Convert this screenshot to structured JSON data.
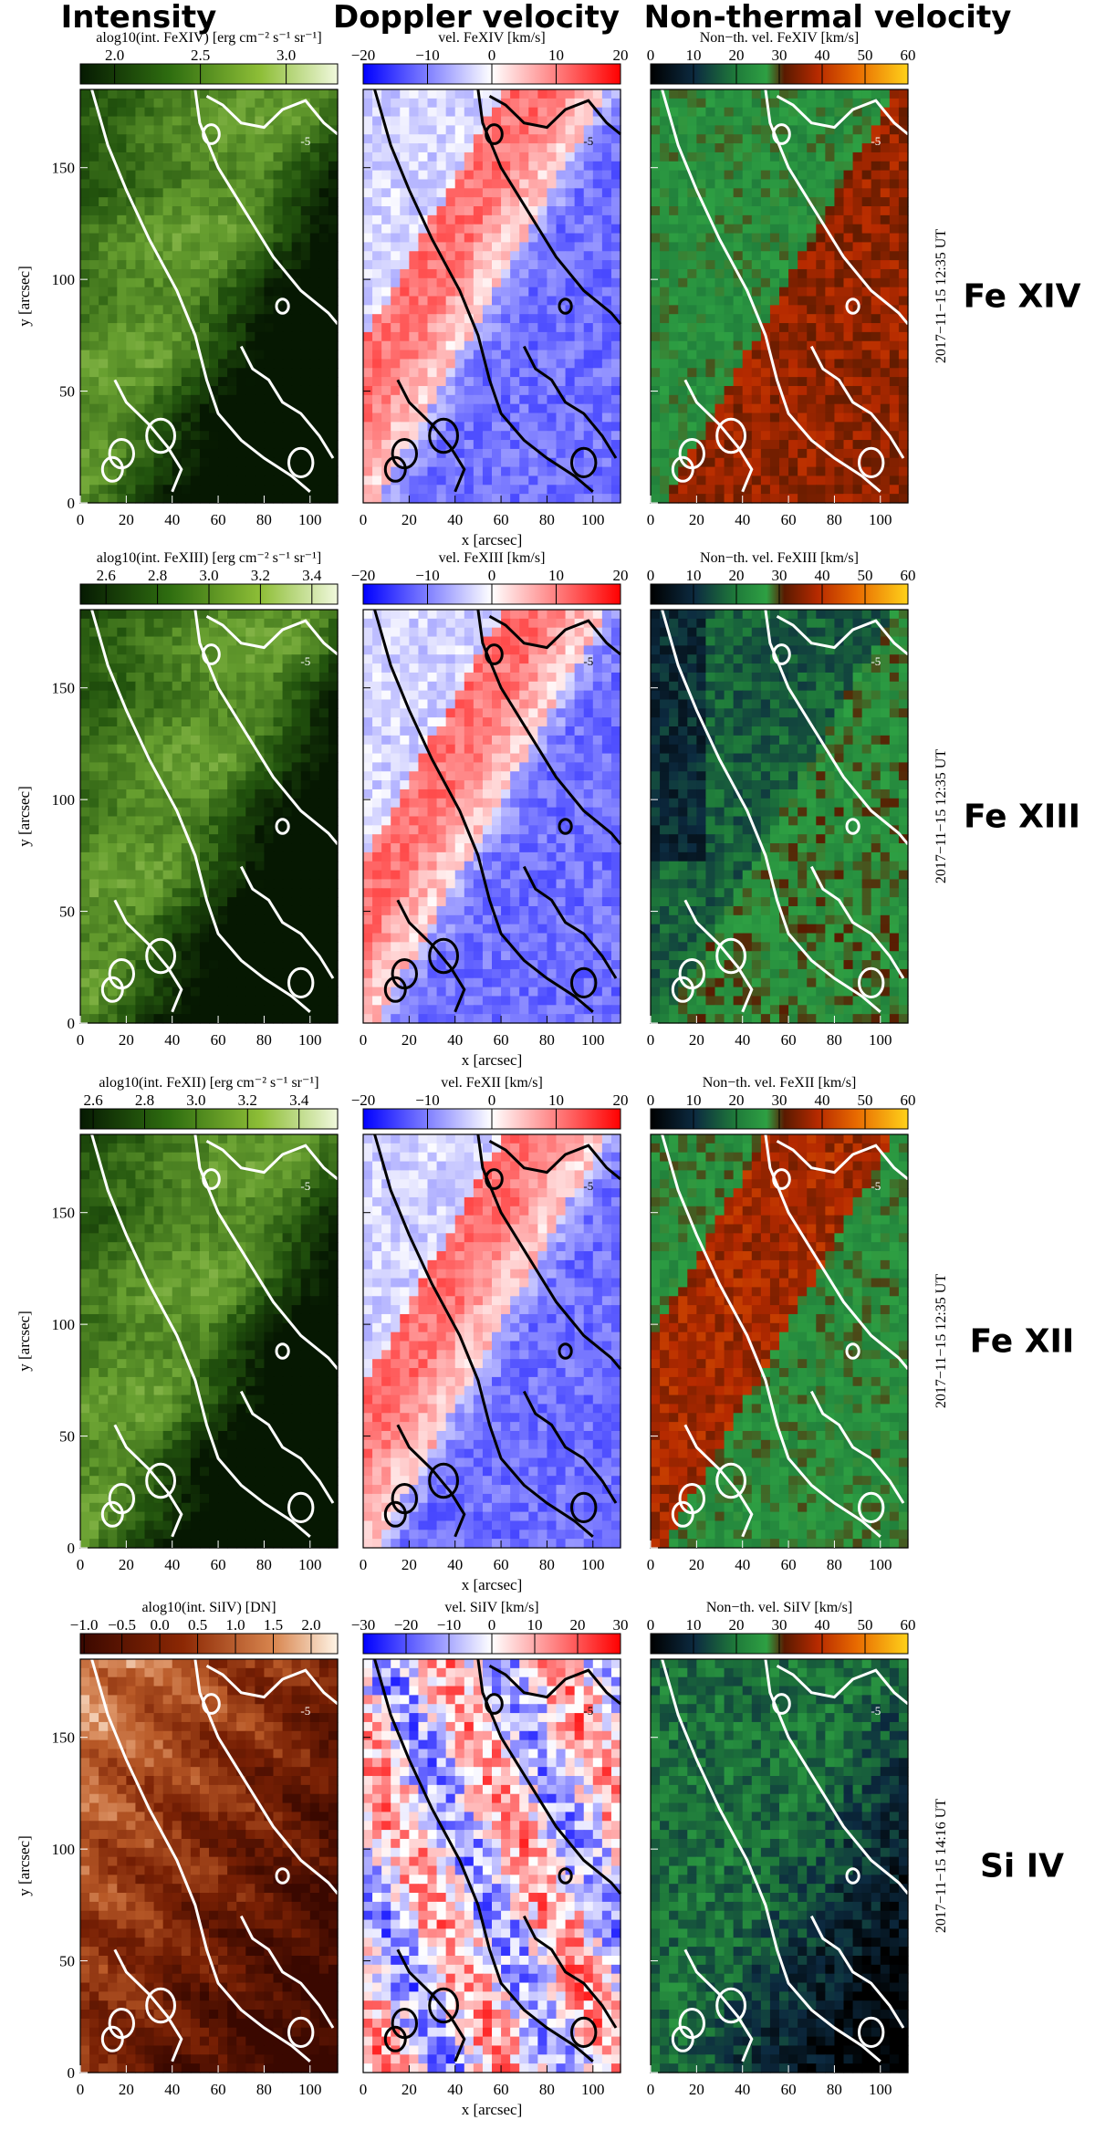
{
  "headings": [
    "Intensity",
    "Doppler velocity",
    "Non-thermal velocity"
  ],
  "chart_data": {
    "type": "heatmap",
    "title": "Intensity, Doppler velocity and non-thermal velocity maps",
    "xlabel": "x [arcsec]",
    "ylabel": "y [arcsec]",
    "xlim": [
      0,
      112
    ],
    "ylim": [
      0,
      185
    ],
    "x_ticks": [
      0,
      20,
      40,
      60,
      80,
      100
    ],
    "y_ticks": [
      0,
      50,
      100,
      150
    ],
    "contour_label": "-5",
    "rows": [
      {
        "ion": "Fe XIV",
        "timestamp": "2017−11−15 12:35 UT",
        "panels": [
          {
            "colorbar_label": "alog10(int. FeXIV) [erg cm⁻² s⁻¹ sr⁻¹]",
            "ticks": [
              "2.0",
              "2.5",
              "3.0"
            ],
            "range": [
              1.8,
              3.3
            ],
            "cmap": "green"
          },
          {
            "colorbar_label": "vel. FeXIV [km/s]",
            "ticks": [
              "−20",
              "−10",
              "0",
              "10",
              "20"
            ],
            "range": [
              -20,
              20
            ],
            "cmap": "bwr"
          },
          {
            "colorbar_label": "Non−th. vel. FeXIV [km/s]",
            "ticks": [
              "0",
              "10",
              "20",
              "30",
              "40",
              "50",
              "60"
            ],
            "range": [
              0,
              60
            ],
            "cmap": "nonth"
          }
        ]
      },
      {
        "ion": "Fe XIII",
        "timestamp": "2017−11−15 12:35 UT",
        "panels": [
          {
            "colorbar_label": "alog10(int. FeXIII) [erg cm⁻² s⁻¹ sr⁻¹]",
            "ticks": [
              "2.6",
              "2.8",
              "3.0",
              "3.2",
              "3.4"
            ],
            "range": [
              2.5,
              3.5
            ],
            "cmap": "green"
          },
          {
            "colorbar_label": "vel. FeXIII [km/s]",
            "ticks": [
              "−20",
              "−10",
              "0",
              "10",
              "20"
            ],
            "range": [
              -20,
              20
            ],
            "cmap": "bwr"
          },
          {
            "colorbar_label": "Non−th. vel. FeXIII [km/s]",
            "ticks": [
              "0",
              "10",
              "20",
              "30",
              "40",
              "50",
              "60"
            ],
            "range": [
              0,
              60
            ],
            "cmap": "nonth"
          }
        ]
      },
      {
        "ion": "Fe XII",
        "timestamp": "2017−11−15 12:35 UT",
        "panels": [
          {
            "colorbar_label": "alog10(int. FeXII) [erg cm⁻² s⁻¹ sr⁻¹]",
            "ticks": [
              "2.6",
              "2.8",
              "3.0",
              "3.2",
              "3.4"
            ],
            "range": [
              2.55,
              3.55
            ],
            "cmap": "green"
          },
          {
            "colorbar_label": "vel. FeXII [km/s]",
            "ticks": [
              "−20",
              "−10",
              "0",
              "10",
              "20"
            ],
            "range": [
              -20,
              20
            ],
            "cmap": "bwr"
          },
          {
            "colorbar_label": "Non−th. vel. FeXII [km/s]",
            "ticks": [
              "0",
              "10",
              "20",
              "30",
              "40",
              "50",
              "60"
            ],
            "range": [
              0,
              60
            ],
            "cmap": "nonth"
          }
        ]
      },
      {
        "ion": "Si IV",
        "timestamp": "2017−11−15 14:16 UT",
        "panels": [
          {
            "colorbar_label": "alog10(int. SiIV) [DN]",
            "ticks": [
              "−1.0",
              "−0.5",
              "0.0",
              "0.5",
              "1.0",
              "1.5",
              "2.0"
            ],
            "range": [
              -1.05,
              2.35
            ],
            "cmap": "red"
          },
          {
            "colorbar_label": "vel. SiIV [km/s]",
            "ticks": [
              "−30",
              "−20",
              "−10",
              "0",
              "10",
              "20",
              "30"
            ],
            "range": [
              -30,
              30
            ],
            "cmap": "bwr"
          },
          {
            "colorbar_label": "Non−th. vel. SiIV [km/s]",
            "ticks": [
              "0",
              "10",
              "20",
              "30",
              "40",
              "50",
              "60"
            ],
            "range": [
              0,
              60
            ],
            "cmap": "nonth"
          }
        ]
      }
    ]
  }
}
